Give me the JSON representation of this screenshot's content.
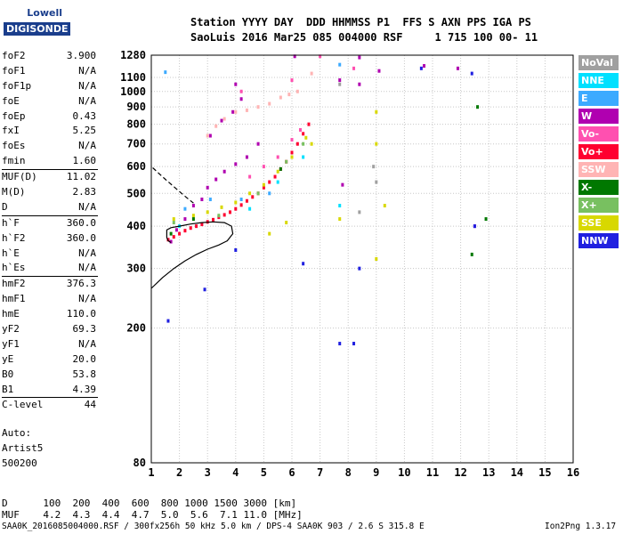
{
  "logo": {
    "line1": "Lowell",
    "line2": "DIGISONDE"
  },
  "header": {
    "line1": "Station YYYY DAY  DDD HHMMSS P1  FFS S AXN PPS IGA PS",
    "line2": "SaoLuis 2016 Mar25 085 004000 RSF     1 715 100 00- 11"
  },
  "params": [
    {
      "name": "foF2",
      "value": "3.900"
    },
    {
      "name": "foF1",
      "value": "N/A"
    },
    {
      "name": "foF1p",
      "value": "N/A"
    },
    {
      "name": "foE",
      "value": "N/A"
    },
    {
      "name": "foEp",
      "value": "0.43"
    },
    {
      "name": "fxI",
      "value": "5.25"
    },
    {
      "name": "foEs",
      "value": "N/A"
    },
    {
      "name": "fmin",
      "value": "1.60"
    },
    {
      "name": "MUF(D)",
      "value": "11.02"
    },
    {
      "name": "M(D)",
      "value": "2.83"
    },
    {
      "name": "D",
      "value": "N/A"
    },
    {
      "name": "h`F",
      "value": "360.0"
    },
    {
      "name": "h`F2",
      "value": "360.0"
    },
    {
      "name": "h`E",
      "value": "N/A"
    },
    {
      "name": "h`Es",
      "value": "N/A"
    },
    {
      "name": "hmF2",
      "value": "376.3"
    },
    {
      "name": "hmF1",
      "value": "N/A"
    },
    {
      "name": "hmE",
      "value": "110.0"
    },
    {
      "name": "yF2",
      "value": "69.3"
    },
    {
      "name": "yF1",
      "value": "N/A"
    },
    {
      "name": "yE",
      "value": "20.0"
    },
    {
      "name": "B0",
      "value": "53.8"
    },
    {
      "name": "B1",
      "value": "4.39"
    },
    {
      "name": "C-level",
      "value": "44"
    }
  ],
  "separator_before": [
    "MUF(D)",
    "h`F",
    "hmF2",
    "C-level"
  ],
  "auto": {
    "line1": "Auto:",
    "line2": "Artist5",
    "line3": "500200"
  },
  "legend": [
    {
      "label": "NoVal",
      "color": "#a0a0a0"
    },
    {
      "label": "NNE",
      "color": "#00e0ff"
    },
    {
      "label": "E",
      "color": "#3caaff"
    },
    {
      "label": "W",
      "color": "#b000b0"
    },
    {
      "label": "Vo-",
      "color": "#ff50b0"
    },
    {
      "label": "Vo+",
      "color": "#ff0030"
    },
    {
      "label": "SSW",
      "color": "#ffb4b4"
    },
    {
      "label": "X-",
      "color": "#007800"
    },
    {
      "label": "X+",
      "color": "#78c060"
    },
    {
      "label": "SSE",
      "color": "#d8d800"
    },
    {
      "label": "NNW",
      "color": "#2020e0"
    }
  ],
  "footer": {
    "d_row": "D      100  200  400  600  800 1000 1500 3000 [km]",
    "muf_row": "MUF    4.2  4.3  4.4  4.7  5.0  5.6  7.1 11.0 [MHz]",
    "file": "SAA0K_2016085004000.RSF / 300fx256h 50 kHz 5.0 km / DPS-4 SAA0K 903 / 2.6 S 315.8 E",
    "version": "Ion2Png 1.3.17"
  },
  "chart_data": {
    "type": "scatter",
    "title": "",
    "xlabel": "",
    "ylabel": "",
    "xlim": [
      1,
      16
    ],
    "ylim": [
      80,
      1280
    ],
    "y_scale": "log",
    "grid": true,
    "x_ticks": [
      1,
      2,
      3,
      4,
      5,
      6,
      7,
      8,
      9,
      10,
      11,
      12,
      13,
      14,
      15,
      16
    ],
    "y_ticks": [
      80,
      200,
      300,
      400,
      500,
      600,
      700,
      800,
      900,
      1000,
      1100,
      1280
    ],
    "y_tick_labels": [
      "80",
      "200",
      "300",
      "400",
      "500",
      "600",
      "700",
      "800",
      "900",
      "1000",
      "1100",
      "1280"
    ],
    "series": [
      {
        "name": "W",
        "color": "#b000b0",
        "points": [
          [
            1.7,
            360
          ],
          [
            1.9,
            390
          ],
          [
            2.2,
            420
          ],
          [
            2.5,
            460
          ],
          [
            2.8,
            480
          ],
          [
            3.0,
            520
          ],
          [
            3.3,
            550
          ],
          [
            3.6,
            580
          ],
          [
            4.0,
            610
          ],
          [
            4.4,
            640
          ],
          [
            4.8,
            700
          ],
          [
            3.1,
            740
          ],
          [
            3.5,
            820
          ],
          [
            3.9,
            870
          ],
          [
            4.2,
            950
          ],
          [
            4.0,
            1050
          ],
          [
            6.1,
            1270
          ],
          [
            8.4,
            1260
          ],
          [
            8.4,
            1050
          ],
          [
            7.7,
            1080
          ],
          [
            7.8,
            530
          ],
          [
            9.1,
            1150
          ],
          [
            11.9,
            1170
          ],
          [
            10.7,
            1190
          ],
          [
            12.5,
            400
          ]
        ]
      },
      {
        "name": "Vo+",
        "color": "#ff0030",
        "points": [
          [
            1.6,
            365
          ],
          [
            1.8,
            372
          ],
          [
            2.0,
            380
          ],
          [
            2.2,
            388
          ],
          [
            2.4,
            395
          ],
          [
            2.6,
            400
          ],
          [
            2.8,
            405
          ],
          [
            3.0,
            412
          ],
          [
            3.2,
            418
          ],
          [
            3.4,
            425
          ],
          [
            3.6,
            432
          ],
          [
            3.8,
            440
          ],
          [
            4.0,
            450
          ],
          [
            4.2,
            462
          ],
          [
            4.4,
            475
          ],
          [
            4.6,
            488
          ],
          [
            4.8,
            500
          ],
          [
            5.0,
            520
          ],
          [
            5.2,
            540
          ],
          [
            5.4,
            560
          ],
          [
            5.6,
            590
          ],
          [
            5.8,
            620
          ],
          [
            6.0,
            660
          ],
          [
            6.2,
            700
          ],
          [
            6.4,
            750
          ],
          [
            6.6,
            800
          ]
        ]
      },
      {
        "name": "SSE",
        "color": "#d8d800",
        "points": [
          [
            1.8,
            420
          ],
          [
            2.5,
            430
          ],
          [
            3.0,
            440
          ],
          [
            3.5,
            455
          ],
          [
            4.0,
            470
          ],
          [
            4.5,
            500
          ],
          [
            5.0,
            530
          ],
          [
            5.5,
            580
          ],
          [
            6.0,
            640
          ],
          [
            6.5,
            730
          ],
          [
            6.7,
            700
          ],
          [
            5.8,
            410
          ],
          [
            5.2,
            380
          ],
          [
            7.7,
            420
          ],
          [
            9.0,
            320
          ],
          [
            9.3,
            460
          ],
          [
            9.0,
            700
          ],
          [
            9.0,
            870
          ]
        ]
      },
      {
        "name": "SSW",
        "color": "#ffb4b4",
        "points": [
          [
            3.0,
            740
          ],
          [
            3.3,
            790
          ],
          [
            3.6,
            830
          ],
          [
            4.0,
            870
          ],
          [
            4.4,
            880
          ],
          [
            4.8,
            900
          ],
          [
            5.2,
            920
          ],
          [
            5.6,
            960
          ],
          [
            5.9,
            980
          ],
          [
            6.2,
            1000
          ],
          [
            6.7,
            1130
          ]
        ]
      },
      {
        "name": "Vo-",
        "color": "#ff50b0",
        "points": [
          [
            4.5,
            560
          ],
          [
            5.0,
            600
          ],
          [
            5.5,
            640
          ],
          [
            6.0,
            720
          ],
          [
            6.3,
            770
          ],
          [
            4.2,
            1000
          ],
          [
            6.0,
            1080
          ],
          [
            7.0,
            1270
          ],
          [
            8.2,
            1170
          ]
        ]
      },
      {
        "name": "E",
        "color": "#3caaff",
        "points": [
          [
            2.2,
            450
          ],
          [
            3.1,
            480
          ],
          [
            4.2,
            480
          ],
          [
            5.2,
            500
          ],
          [
            1.5,
            1140
          ],
          [
            7.7,
            1200
          ]
        ]
      },
      {
        "name": "NNE",
        "color": "#00e0ff",
        "points": [
          [
            2.0,
            400
          ],
          [
            4.5,
            450
          ],
          [
            5.5,
            540
          ],
          [
            6.4,
            640
          ],
          [
            7.7,
            460
          ]
        ]
      },
      {
        "name": "X-",
        "color": "#007800",
        "points": [
          [
            1.7,
            380
          ],
          [
            2.5,
            420
          ],
          [
            5.6,
            590
          ],
          [
            12.4,
            330
          ],
          [
            12.6,
            900
          ],
          [
            12.9,
            420
          ]
        ]
      },
      {
        "name": "X+",
        "color": "#78c060",
        "points": [
          [
            1.8,
            410
          ],
          [
            3.4,
            430
          ],
          [
            4.8,
            500
          ],
          [
            5.8,
            620
          ],
          [
            6.4,
            700
          ]
        ]
      },
      {
        "name": "NNW",
        "color": "#2020e0",
        "points": [
          [
            1.6,
            210
          ],
          [
            2.9,
            260
          ],
          [
            4.0,
            340
          ],
          [
            6.4,
            310
          ],
          [
            7.7,
            180
          ],
          [
            8.2,
            180
          ],
          [
            8.4,
            300
          ],
          [
            10.6,
            1170
          ],
          [
            12.5,
            400
          ],
          [
            12.4,
            1130
          ]
        ]
      },
      {
        "name": "NoVal",
        "color": "#a0a0a0",
        "points": [
          [
            7.7,
            1050
          ],
          [
            8.9,
            600
          ],
          [
            9.0,
            540
          ],
          [
            8.4,
            440
          ]
        ]
      }
    ],
    "lines": [
      {
        "name": "profile",
        "style": "solid",
        "points": [
          [
            1.0,
            262
          ],
          [
            1.4,
            282
          ],
          [
            1.8,
            300
          ],
          [
            2.2,
            316
          ],
          [
            2.6,
            330
          ],
          [
            3.0,
            342
          ],
          [
            3.4,
            352
          ],
          [
            3.7,
            362
          ],
          [
            3.9,
            380
          ],
          [
            3.85,
            400
          ],
          [
            3.6,
            410
          ],
          [
            3.2,
            412
          ],
          [
            2.8,
            410
          ],
          [
            2.4,
            406
          ],
          [
            2.0,
            400
          ],
          [
            1.7,
            396
          ],
          [
            1.55,
            390
          ],
          [
            1.55,
            370
          ],
          [
            1.6,
            362
          ],
          [
            1.7,
            358
          ]
        ]
      },
      {
        "name": "muf-curve",
        "style": "dashed",
        "points": [
          [
            1.05,
            595
          ],
          [
            1.5,
            550
          ],
          [
            1.9,
            515
          ],
          [
            2.2,
            490
          ],
          [
            2.5,
            468
          ]
        ]
      }
    ]
  }
}
